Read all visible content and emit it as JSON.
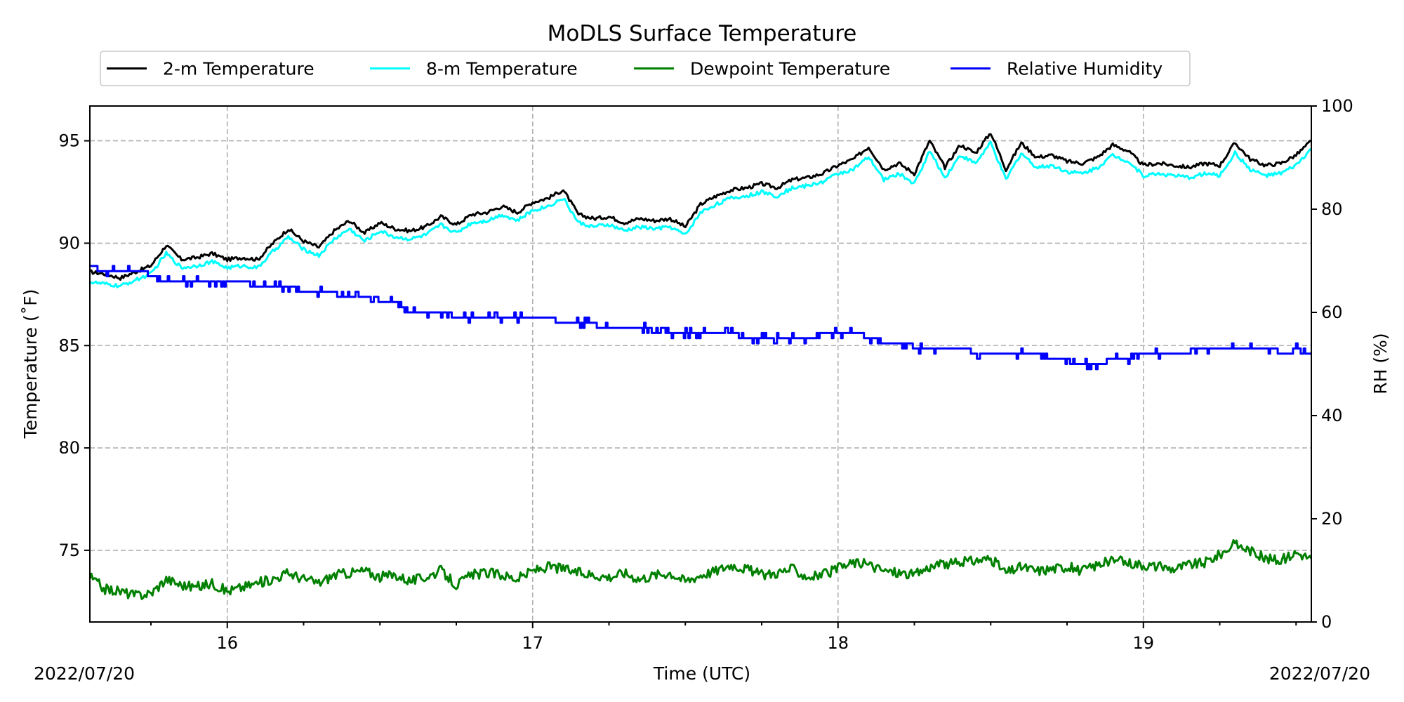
{
  "chart_data": {
    "type": "line",
    "title": "MoDLS Surface Temperature",
    "xlabel": "Time (UTC)",
    "ylabel": "Temperature ($^\\circ$F)",
    "ylabel_display": "Temperature (˚F)",
    "y2label": "RH (%)",
    "date_left": "2022/07/20",
    "date_right": "2022/07/20",
    "x_unit": "hour (UTC)",
    "xlim": [
      15.55,
      19.55
    ],
    "ylim": [
      71.5,
      96.7
    ],
    "y2lim": [
      0,
      100
    ],
    "x_major_ticks": [
      16,
      17,
      18,
      19
    ],
    "x_tick_labels": [
      "16",
      "17",
      "18",
      "19"
    ],
    "x_minor_step": 0.25,
    "y_ticks": [
      75,
      80,
      85,
      90,
      95
    ],
    "y_tick_labels": [
      "75",
      "80",
      "85",
      "90",
      "95"
    ],
    "y2_ticks": [
      0,
      20,
      40,
      60,
      80,
      100
    ],
    "y2_tick_labels": [
      "0",
      "20",
      "40",
      "60",
      "80",
      "100"
    ],
    "grid": true,
    "legend_position": "top-center, above plot",
    "series": [
      {
        "name": "2-m Temperature",
        "color": "#000000",
        "axis": "left",
        "x": [
          15.55,
          15.6,
          15.65,
          15.7,
          15.75,
          15.8,
          15.85,
          15.9,
          15.95,
          16.0,
          16.05,
          16.1,
          16.15,
          16.2,
          16.25,
          16.3,
          16.35,
          16.4,
          16.45,
          16.5,
          16.55,
          16.6,
          16.65,
          16.7,
          16.75,
          16.8,
          16.85,
          16.9,
          16.95,
          17.0,
          17.05,
          17.1,
          17.15,
          17.2,
          17.25,
          17.3,
          17.35,
          17.4,
          17.45,
          17.5,
          17.55,
          17.6,
          17.65,
          17.7,
          17.75,
          17.8,
          17.85,
          17.9,
          17.95,
          18.0,
          18.05,
          18.1,
          18.15,
          18.2,
          18.25,
          18.3,
          18.35,
          18.4,
          18.45,
          18.5,
          18.55,
          18.6,
          18.65,
          18.7,
          18.75,
          18.8,
          18.85,
          18.9,
          18.95,
          19.0,
          19.05,
          19.1,
          19.15,
          19.2,
          19.25,
          19.3,
          19.35,
          19.4,
          19.45,
          19.5,
          19.55
        ],
        "y": [
          88.6,
          88.5,
          88.3,
          88.6,
          88.9,
          89.9,
          89.2,
          89.3,
          89.5,
          89.2,
          89.3,
          89.2,
          90.0,
          90.7,
          90.1,
          89.8,
          90.6,
          91.1,
          90.5,
          91.0,
          90.7,
          90.6,
          90.8,
          91.3,
          90.9,
          91.4,
          91.5,
          91.8,
          91.5,
          92.0,
          92.2,
          92.6,
          91.4,
          91.2,
          91.3,
          91.0,
          91.2,
          91.1,
          91.2,
          90.8,
          91.9,
          92.3,
          92.6,
          92.7,
          92.9,
          92.7,
          93.1,
          93.2,
          93.4,
          93.8,
          94.1,
          94.7,
          93.6,
          93.9,
          93.4,
          95.0,
          93.7,
          94.8,
          94.4,
          95.4,
          93.6,
          94.9,
          94.2,
          94.3,
          94.0,
          93.9,
          94.2,
          94.8,
          94.5,
          93.8,
          93.9,
          93.8,
          93.7,
          93.9,
          93.8,
          94.9,
          94.1,
          93.8,
          93.9,
          94.3,
          95.0
        ]
      },
      {
        "name": "8-m Temperature",
        "color": "#00ffff",
        "axis": "left",
        "x": [
          15.55,
          15.6,
          15.65,
          15.7,
          15.75,
          15.8,
          15.85,
          15.9,
          15.95,
          16.0,
          16.05,
          16.1,
          16.15,
          16.2,
          16.25,
          16.3,
          16.35,
          16.4,
          16.45,
          16.5,
          16.55,
          16.6,
          16.65,
          16.7,
          16.75,
          16.8,
          16.85,
          16.9,
          16.95,
          17.0,
          17.05,
          17.1,
          17.15,
          17.2,
          17.25,
          17.3,
          17.35,
          17.4,
          17.45,
          17.5,
          17.55,
          17.6,
          17.65,
          17.7,
          17.75,
          17.8,
          17.85,
          17.9,
          17.95,
          18.0,
          18.05,
          18.1,
          18.15,
          18.2,
          18.25,
          18.3,
          18.35,
          18.4,
          18.45,
          18.5,
          18.55,
          18.6,
          18.65,
          18.7,
          18.75,
          18.8,
          18.85,
          18.9,
          18.95,
          19.0,
          19.05,
          19.1,
          19.15,
          19.2,
          19.25,
          19.3,
          19.35,
          19.4,
          19.45,
          19.5,
          19.55
        ],
        "y": [
          88.1,
          88.0,
          87.9,
          88.2,
          88.5,
          89.5,
          88.8,
          88.9,
          89.1,
          88.8,
          88.9,
          88.8,
          89.6,
          90.3,
          89.7,
          89.4,
          90.2,
          90.7,
          90.1,
          90.6,
          90.3,
          90.2,
          90.4,
          90.9,
          90.5,
          91.0,
          91.1,
          91.4,
          91.1,
          91.6,
          91.8,
          92.2,
          91.0,
          90.8,
          90.9,
          90.6,
          90.8,
          90.7,
          90.8,
          90.4,
          91.5,
          91.9,
          92.2,
          92.3,
          92.5,
          92.3,
          92.7,
          92.8,
          93.0,
          93.4,
          93.6,
          94.2,
          93.1,
          93.4,
          92.9,
          94.5,
          93.2,
          94.3,
          93.9,
          94.9,
          93.1,
          94.4,
          93.7,
          93.8,
          93.5,
          93.4,
          93.7,
          94.3,
          94.0,
          93.3,
          93.4,
          93.3,
          93.2,
          93.4,
          93.3,
          94.4,
          93.6,
          93.3,
          93.4,
          93.8,
          94.6
        ]
      },
      {
        "name": "Dewpoint Temperature",
        "color": "#008000",
        "axis": "left",
        "x": [
          15.55,
          15.6,
          15.65,
          15.7,
          15.75,
          15.8,
          15.85,
          15.9,
          15.95,
          16.0,
          16.05,
          16.1,
          16.15,
          16.2,
          16.25,
          16.3,
          16.35,
          16.4,
          16.45,
          16.5,
          16.55,
          16.6,
          16.65,
          16.7,
          16.75,
          16.8,
          16.85,
          16.9,
          16.95,
          17.0,
          17.05,
          17.1,
          17.15,
          17.2,
          17.25,
          17.3,
          17.35,
          17.4,
          17.45,
          17.5,
          17.55,
          17.6,
          17.65,
          17.7,
          17.75,
          17.8,
          17.85,
          17.9,
          17.95,
          18.0,
          18.05,
          18.1,
          18.15,
          18.2,
          18.25,
          18.3,
          18.35,
          18.4,
          18.45,
          18.5,
          18.55,
          18.6,
          18.65,
          18.7,
          18.75,
          18.8,
          18.85,
          18.9,
          18.95,
          19.0,
          19.05,
          19.1,
          19.15,
          19.2,
          19.25,
          19.3,
          19.35,
          19.4,
          19.45,
          19.5,
          19.55
        ],
        "y": [
          73.7,
          73.1,
          73.0,
          72.8,
          72.9,
          73.6,
          73.3,
          73.2,
          73.4,
          73.0,
          73.2,
          73.4,
          73.6,
          73.9,
          73.6,
          73.4,
          73.8,
          73.9,
          74.0,
          73.7,
          73.8,
          73.5,
          73.7,
          74.0,
          73.3,
          73.8,
          73.9,
          73.8,
          73.6,
          74.0,
          74.2,
          74.1,
          73.9,
          73.8,
          73.7,
          73.9,
          73.6,
          73.8,
          73.9,
          73.5,
          73.8,
          74.0,
          74.3,
          74.1,
          73.8,
          73.9,
          74.1,
          73.7,
          73.8,
          74.1,
          74.4,
          74.3,
          74.0,
          73.9,
          73.8,
          74.2,
          74.3,
          74.4,
          74.5,
          74.6,
          73.9,
          74.2,
          74.0,
          74.1,
          74.2,
          74.0,
          74.3,
          74.5,
          74.4,
          74.3,
          74.2,
          74.1,
          74.3,
          74.4,
          74.8,
          75.3,
          75.0,
          74.6,
          74.5,
          74.9,
          74.6
        ]
      },
      {
        "name": "Relative Humidity",
        "color": "#0000ff",
        "axis": "right",
        "x": [
          15.55,
          15.6,
          15.65,
          15.7,
          15.75,
          15.8,
          15.85,
          15.9,
          15.95,
          16.0,
          16.05,
          16.1,
          16.15,
          16.2,
          16.25,
          16.3,
          16.35,
          16.4,
          16.45,
          16.5,
          16.55,
          16.6,
          16.65,
          16.7,
          16.75,
          16.8,
          16.85,
          16.9,
          16.95,
          17.0,
          17.05,
          17.1,
          17.15,
          17.2,
          17.25,
          17.3,
          17.35,
          17.4,
          17.45,
          17.5,
          17.55,
          17.6,
          17.65,
          17.7,
          17.75,
          17.8,
          17.85,
          17.9,
          17.95,
          18.0,
          18.05,
          18.1,
          18.15,
          18.2,
          18.25,
          18.3,
          18.35,
          18.4,
          18.45,
          18.5,
          18.55,
          18.6,
          18.65,
          18.7,
          18.75,
          18.8,
          18.85,
          18.9,
          18.95,
          19.0,
          19.05,
          19.1,
          19.15,
          19.2,
          19.25,
          19.3,
          19.35,
          19.4,
          19.45,
          19.5,
          19.55
        ],
        "y": [
          69,
          68,
          68,
          68,
          67,
          66,
          66,
          66,
          66,
          66,
          66,
          65,
          65,
          65,
          64,
          64,
          64,
          63,
          63,
          62,
          62,
          60,
          60,
          60,
          59,
          59,
          59,
          59,
          59,
          59,
          59,
          58,
          58,
          58,
          57,
          57,
          57,
          57,
          56,
          56,
          56,
          56,
          56,
          55,
          55,
          55,
          55,
          55,
          56,
          56,
          56,
          55,
          54,
          54,
          53,
          53,
          53,
          53,
          52,
          52,
          52,
          52,
          52,
          51,
          51,
          50,
          50,
          51,
          51,
          52,
          52,
          52,
          52,
          53,
          53,
          53,
          53,
          53,
          52,
          53,
          52
        ]
      }
    ]
  }
}
